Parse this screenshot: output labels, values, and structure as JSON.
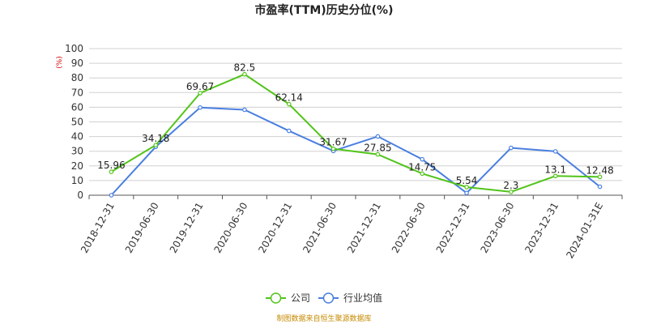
{
  "chart_data": {
    "type": "line",
    "title": "市盈率(TTM)历史分位(%)",
    "y_unit": "(%)",
    "ylim": [
      0,
      100
    ],
    "y_ticks": [
      0,
      10,
      20,
      30,
      40,
      50,
      60,
      70,
      80,
      90,
      100
    ],
    "grid": true,
    "legend_position": "bottom-center",
    "categories": [
      "2018-12-31",
      "2019-06-30",
      "2019-12-31",
      "2020-06-30",
      "2020-12-31",
      "2021-06-30",
      "2021-12-31",
      "2022-06-30",
      "2022-12-31",
      "2023-06-30",
      "2023-12-31",
      "2024-01-31E"
    ],
    "series": [
      {
        "name": "公司",
        "color": "#52c41a",
        "values": [
          15.96,
          34.18,
          69.67,
          82.5,
          62.14,
          31.67,
          27.85,
          14.75,
          5.54,
          2.3,
          13.1,
          12.48
        ],
        "labels": [
          "15.96",
          "34.18",
          "69.67",
          "82.5",
          "62.14",
          "31.67",
          "27.85",
          "14.75",
          "5.54",
          "2.3",
          "13.1",
          "12.48"
        ]
      },
      {
        "name": "行业均值",
        "color": "#4a7fe0",
        "values": [
          0,
          33,
          59.8,
          58.3,
          43.9,
          30.2,
          40.1,
          24.5,
          1.5,
          32.3,
          29.9,
          5.8
        ]
      }
    ]
  },
  "source_text": "制图数据来自恒生聚源数据库"
}
